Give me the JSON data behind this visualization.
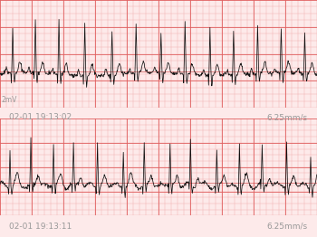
{
  "bg_color": "#fdeaea",
  "grid_minor_color": "#f0aaaa",
  "grid_major_color": "#e06060",
  "timestamp1": "02-01 19:13:02",
  "timestamp2": "02-01 19:13:11",
  "speed_label": "6.25mm/s",
  "label2mv": "2mV",
  "text_color": "#999999",
  "trace_color": "#111111",
  "red_baseline_color": "#cc3333",
  "label_fontsize": 6.5,
  "figsize": [
    3.5,
    2.62
  ],
  "dpi": 100
}
